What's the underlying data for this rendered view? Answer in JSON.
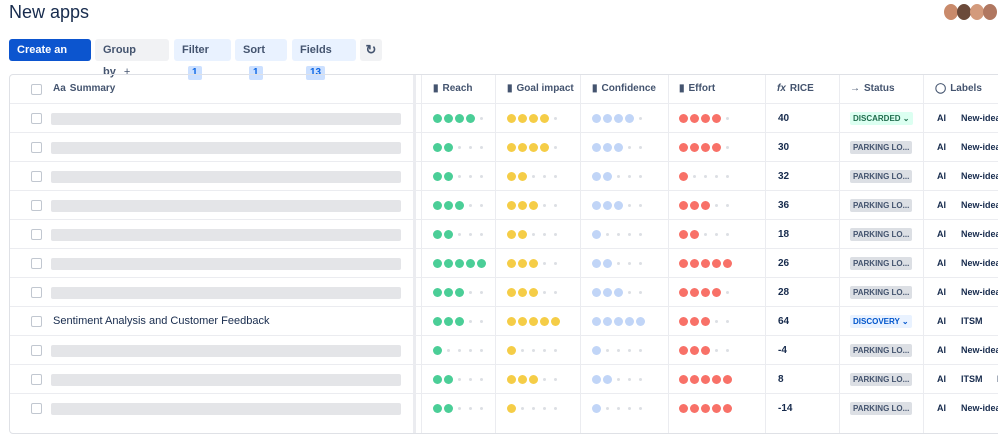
{
  "header": {
    "title": "New apps"
  },
  "toolbar": {
    "create": "Create an idea",
    "group_by": "Group by",
    "group_by_add": "+",
    "filter": "Filter",
    "filter_count": 1,
    "sort": "Sort",
    "sort_count": 1,
    "fields": "Fields",
    "fields_count": 13
  },
  "table": {
    "columns": {
      "summary": "Summary",
      "reach": "Reach",
      "goal_impact": "Goal impact",
      "confidence": "Confidence",
      "effort": "Effort",
      "rice": "RICE",
      "status": "Status",
      "labels": "Labels"
    },
    "rows": [
      {
        "summary": null,
        "reach": 4,
        "goal_impact": 4,
        "confidence": 4,
        "effort": 4,
        "rice": 40,
        "status": "DISCARDED",
        "labels": [
          "AI",
          "New-idea"
        ]
      },
      {
        "summary": null,
        "reach": 2,
        "goal_impact": 4,
        "confidence": 3,
        "effort": 4,
        "rice": 30,
        "status": "PARKING LO...",
        "labels": [
          "AI",
          "New-idea"
        ]
      },
      {
        "summary": null,
        "reach": 2,
        "goal_impact": 2,
        "confidence": 2,
        "effort": 1,
        "rice": 32,
        "status": "PARKING LO...",
        "labels": [
          "AI",
          "New-idea"
        ]
      },
      {
        "summary": null,
        "reach": 3,
        "goal_impact": 3,
        "confidence": 3,
        "effort": 3,
        "rice": 36,
        "status": "PARKING LO...",
        "labels": [
          "AI",
          "New-idea"
        ]
      },
      {
        "summary": null,
        "reach": 2,
        "goal_impact": 2,
        "confidence": 1,
        "effort": 2,
        "rice": 18,
        "status": "PARKING LO...",
        "labels": [
          "AI",
          "New-idea"
        ]
      },
      {
        "summary": null,
        "reach": 5,
        "goal_impact": 3,
        "confidence": 2,
        "effort": 5,
        "rice": 26,
        "status": "PARKING LO...",
        "labels": [
          "AI",
          "New-idea"
        ]
      },
      {
        "summary": null,
        "reach": 3,
        "goal_impact": 3,
        "confidence": 3,
        "effort": 4,
        "rice": 28,
        "status": "PARKING LO...",
        "labels": [
          "AI",
          "New-idea"
        ]
      },
      {
        "summary": "Sentiment Analysis and Customer Feedback",
        "reach": 3,
        "goal_impact": 5,
        "confidence": 5,
        "effort": 3,
        "rice": 64,
        "status": "DISCOVERY",
        "labels": [
          "AI",
          "ITSM"
        ]
      },
      {
        "summary": null,
        "reach": 1,
        "goal_impact": 1,
        "confidence": 1,
        "effort": 3,
        "rice": -4,
        "status": "PARKING LO...",
        "labels": [
          "AI",
          "New-idea"
        ]
      },
      {
        "summary": null,
        "reach": 2,
        "goal_impact": 3,
        "confidence": 2,
        "effort": 5,
        "rice": 8,
        "status": "PARKING LO...",
        "labels": [
          "AI",
          "ITSM",
          "Ne"
        ]
      },
      {
        "summary": null,
        "reach": 2,
        "goal_impact": 1,
        "confidence": 1,
        "effort": 5,
        "rice": -14,
        "status": "PARKING LO...",
        "labels": [
          "AI",
          "New-idea"
        ]
      }
    ]
  }
}
